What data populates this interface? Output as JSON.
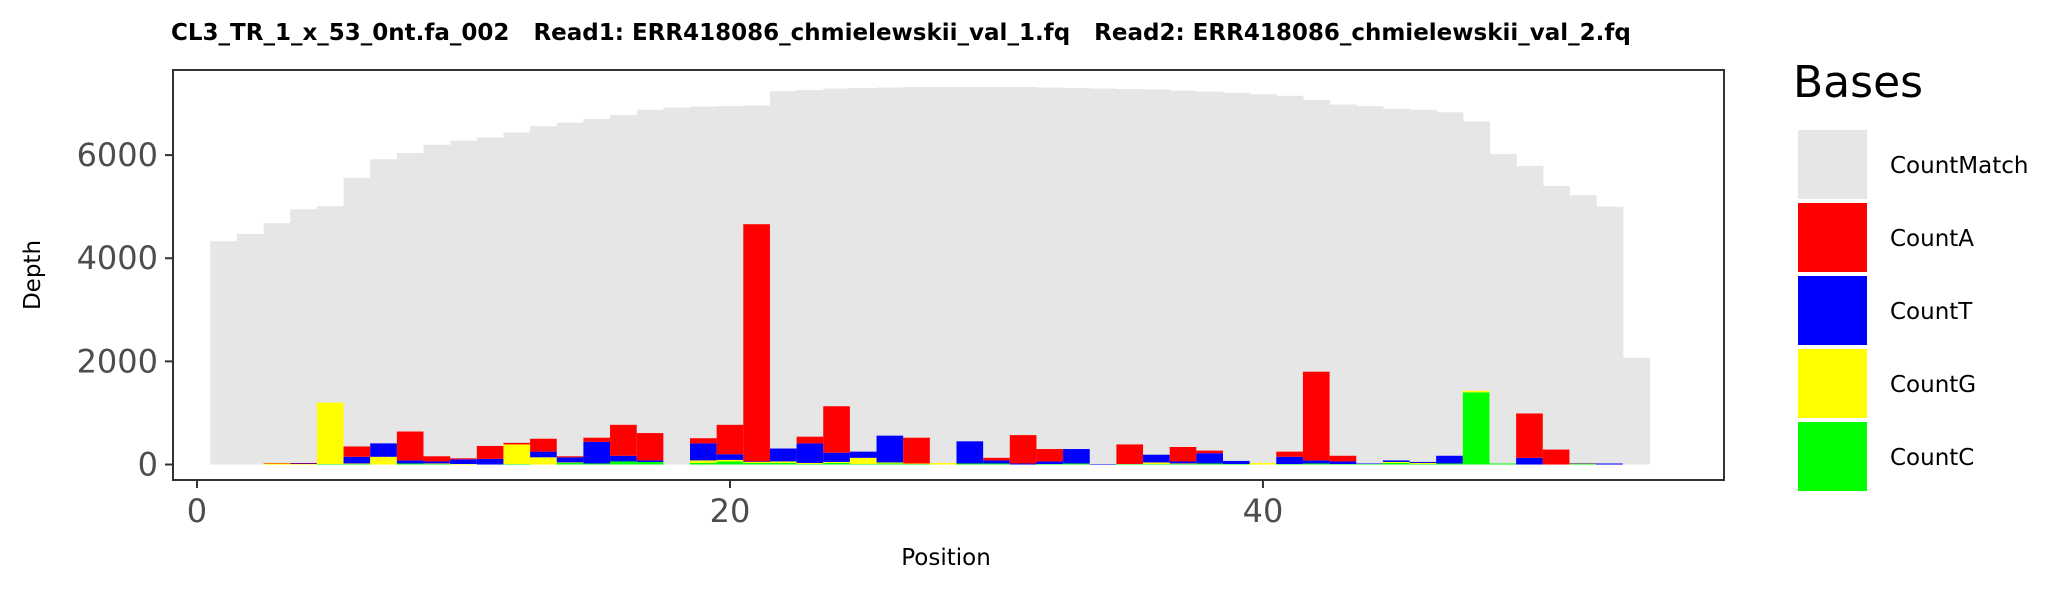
{
  "chart_data": {
    "type": "bar",
    "title": "CL3_TR_1_x_53_0nt.fa_002   Read1: ERR418086_chmielewskii_val_1.fq   Read2: ERR418086_chmielewskii_val_2.fq",
    "xlabel": "Position",
    "ylabel": "Depth",
    "xlim": [
      -0.9,
      57.3
    ],
    "ylim": [
      -300,
      7650
    ],
    "xticks": [
      0,
      20,
      40
    ],
    "yticks": [
      0,
      2000,
      4000,
      6000
    ],
    "grid": false,
    "legend_position": "right",
    "legend_title": "Bases",
    "x": [
      1,
      2,
      3,
      4,
      5,
      6,
      7,
      8,
      9,
      10,
      11,
      12,
      13,
      14,
      15,
      16,
      17,
      18,
      19,
      20,
      21,
      22,
      23,
      24,
      25,
      26,
      27,
      28,
      29,
      30,
      31,
      32,
      33,
      34,
      35,
      36,
      37,
      38,
      39,
      40,
      41,
      42,
      43,
      44,
      45,
      46,
      47,
      48,
      49,
      50,
      51,
      52,
      53,
      54
    ],
    "series": [
      {
        "name": "CountMatch",
        "color": "#e6e6e6",
        "values": [
          4330,
          4470,
          4680,
          4950,
          5010,
          5560,
          5920,
          6040,
          6200,
          6280,
          6340,
          6440,
          6560,
          6630,
          6700,
          6780,
          6880,
          6920,
          6940,
          6950,
          6960,
          7240,
          7260,
          7290,
          7300,
          7310,
          7320,
          7320,
          7320,
          7320,
          7320,
          7310,
          7300,
          7290,
          7280,
          7270,
          7250,
          7230,
          7210,
          7180,
          7150,
          7070,
          6980,
          6950,
          6900,
          6880,
          6830,
          6650,
          6020,
          5790,
          5400,
          5220,
          5000,
          2070
        ]
      },
      {
        "name": "CountA",
        "color": "#ff0000",
        "values": [
          0,
          0,
          10,
          10,
          0,
          200,
          0,
          560,
          100,
          20,
          250,
          30,
          250,
          20,
          80,
          600,
          530,
          0,
          100,
          570,
          4600,
          0,
          130,
          900,
          0,
          0,
          500,
          0,
          0,
          50,
          550,
          240,
          0,
          0,
          380,
          0,
          280,
          50,
          0,
          0,
          100,
          1720,
          110,
          0,
          0,
          0,
          0,
          0,
          0,
          860,
          290,
          0,
          0,
          0
        ]
      },
      {
        "name": "CountT",
        "color": "#0000ff",
        "values": [
          0,
          0,
          0,
          10,
          0,
          130,
          260,
          60,
          40,
          90,
          110,
          0,
          110,
          100,
          420,
          110,
          30,
          0,
          330,
          110,
          10,
          250,
          380,
          180,
          120,
          520,
          0,
          0,
          430,
          60,
          20,
          50,
          280,
          10,
          0,
          150,
          40,
          200,
          60,
          0,
          140,
          60,
          50,
          10,
          30,
          20,
          150,
          0,
          0,
          130,
          0,
          10,
          20,
          0
        ]
      },
      {
        "name": "CountG",
        "color": "#ffff00",
        "values": [
          0,
          0,
          20,
          10,
          1190,
          10,
          150,
          0,
          10,
          10,
          0,
          380,
          140,
          10,
          0,
          0,
          0,
          0,
          50,
          30,
          20,
          30,
          20,
          20,
          120,
          20,
          10,
          30,
          0,
          0,
          0,
          0,
          0,
          0,
          0,
          30,
          10,
          0,
          0,
          30,
          0,
          0,
          0,
          0,
          20,
          20,
          0,
          30,
          0,
          0,
          0,
          10,
          0,
          0
        ]
      },
      {
        "name": "CountC",
        "color": "#00ff00",
        "values": [
          0,
          0,
          0,
          0,
          10,
          10,
          0,
          20,
          10,
          0,
          0,
          10,
          0,
          30,
          20,
          60,
          50,
          0,
          30,
          60,
          30,
          30,
          10,
          30,
          10,
          20,
          10,
          0,
          20,
          20,
          0,
          10,
          20,
          0,
          10,
          10,
          10,
          20,
          10,
          0,
          10,
          20,
          10,
          10,
          30,
          10,
          20,
          1400,
          20,
          0,
          0,
          10,
          0,
          0
        ]
      }
    ]
  }
}
